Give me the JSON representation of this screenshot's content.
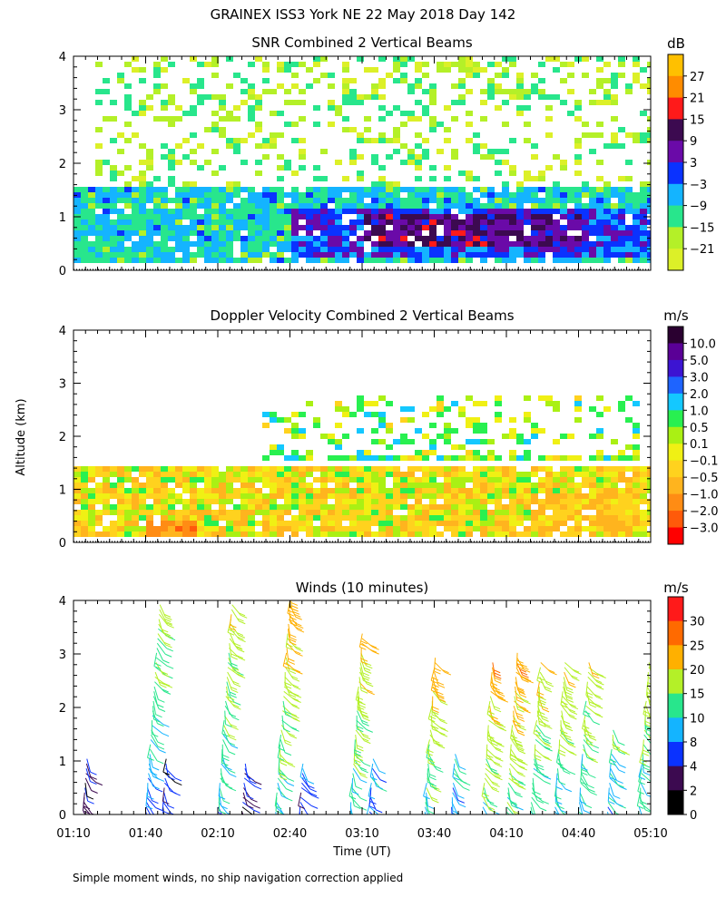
{
  "figure_title": "GRAINEX ISS3 York NE  22 May 2018 Day 142",
  "shared_ylabel": "Altitude (km)",
  "shared_xlabel": "Time (UT)",
  "footnote": "Simple moment winds, no ship navigation correction applied",
  "x_ticks": [
    "01:10",
    "01:40",
    "02:10",
    "02:40",
    "03:10",
    "03:40",
    "04:10",
    "04:40",
    "05:10"
  ],
  "y_ticks": [
    "0",
    "1",
    "2",
    "3",
    "4"
  ],
  "chart_data": [
    {
      "type": "heatmap",
      "title": "SNR Combined 2 Vertical Beams",
      "units": "dB",
      "xlim": [
        "01:10",
        "05:10"
      ],
      "ylim": [
        0,
        4
      ],
      "colorbar": {
        "labels": [
          "27",
          "21",
          "15",
          "9",
          "3",
          "−3",
          "−9",
          "−15",
          "−21"
        ],
        "colors": [
          "#ffc000",
          "#ff8c00",
          "#ff1a1a",
          "#3c0a50",
          "#6a0aa8",
          "#0a32ff",
          "#14b4ff",
          "#28e68c",
          "#b4f028",
          "#dcf028"
        ]
      },
      "regions": [
        {
          "x": [
            "01:10",
            "05:10"
          ],
          "y": [
            0.15,
            1.6
          ],
          "value_db": -12
        },
        {
          "x": [
            "02:40",
            "05:10"
          ],
          "y": [
            0.2,
            1.2
          ],
          "value_db": -3
        },
        {
          "x": [
            "03:10",
            "04:40"
          ],
          "y": [
            0.4,
            1.0
          ],
          "value_db": 6
        },
        {
          "x": [
            "01:20",
            "05:10"
          ],
          "y": [
            1.6,
            4.0
          ],
          "value_db": -20
        }
      ]
    },
    {
      "type": "heatmap",
      "title": "Doppler Velocity Combined 2 Vertical Beams",
      "units": "m/s",
      "xlim": [
        "01:10",
        "05:10"
      ],
      "ylim": [
        0,
        4
      ],
      "colorbar": {
        "labels": [
          "10.0",
          "5.0",
          "3.0",
          "2.0",
          "1.0",
          "0.5",
          "0.1",
          "−0.1",
          "−0.5",
          "−1.0",
          "−2.0",
          "−3.0"
        ],
        "colors": [
          "#2a0030",
          "#5a0096",
          "#3c14d2",
          "#1e64ff",
          "#14c8ff",
          "#28f050",
          "#aaf014",
          "#f0f014",
          "#ffd21e",
          "#ffb41e",
          "#ff8c14",
          "#ff5a0a",
          "#ff0000"
        ]
      },
      "regions": [
        {
          "x": [
            "01:10",
            "05:10"
          ],
          "y": [
            0.1,
            1.4
          ],
          "value_ms": -0.3
        },
        {
          "x": [
            "01:40",
            "02:00"
          ],
          "y": [
            0.1,
            0.4
          ],
          "value_ms": -2.0
        },
        {
          "x": [
            "04:20",
            "05:05"
          ],
          "y": [
            0.2,
            0.9
          ],
          "value_ms": -0.8
        },
        {
          "x": [
            "02:30",
            "05:05"
          ],
          "y": [
            1.5,
            2.8
          ],
          "value_ms": 0.3
        }
      ]
    },
    {
      "type": "scatter",
      "title": "Winds (10 minutes)",
      "units": "m/s",
      "xlim": [
        "01:10",
        "05:10"
      ],
      "ylim": [
        0,
        4
      ],
      "colorbar": {
        "labels": [
          "30",
          "25",
          "20",
          "15",
          "10",
          "8",
          "4",
          "2",
          "0"
        ],
        "colors": [
          "#ff1a1a",
          "#ff6a00",
          "#ffb000",
          "#b4f028",
          "#28e68c",
          "#14b4ff",
          "#0a32ff",
          "#3c0a50",
          "#000000"
        ]
      },
      "profiles": [
        {
          "time": "01:14",
          "top_km": 1.1,
          "speed_ms": 3
        },
        {
          "time": "01:40",
          "top_km": 4.0,
          "speed_ms": 10
        },
        {
          "time": "01:47",
          "top_km": 1.1,
          "speed_ms": 4
        },
        {
          "time": "02:10",
          "top_km": 4.0,
          "speed_ms": 12
        },
        {
          "time": "02:20",
          "top_km": 1.0,
          "speed_ms": 4
        },
        {
          "time": "02:34",
          "top_km": 4.1,
          "speed_ms": 14
        },
        {
          "time": "02:44",
          "top_km": 1.0,
          "speed_ms": 6
        },
        {
          "time": "03:05",
          "top_km": 3.4,
          "speed_ms": 14
        },
        {
          "time": "03:13",
          "top_km": 1.1,
          "speed_ms": 10
        },
        {
          "time": "03:36",
          "top_km": 3.0,
          "speed_ms": 16
        },
        {
          "time": "03:47",
          "top_km": 1.2,
          "speed_ms": 12
        },
        {
          "time": "04:00",
          "top_km": 2.9,
          "speed_ms": 18
        },
        {
          "time": "04:10",
          "top_km": 3.1,
          "speed_ms": 18
        },
        {
          "time": "04:20",
          "top_km": 2.9,
          "speed_ms": 15
        },
        {
          "time": "04:30",
          "top_km": 2.9,
          "speed_ms": 14
        },
        {
          "time": "04:40",
          "top_km": 2.9,
          "speed_ms": 14
        },
        {
          "time": "04:52",
          "top_km": 1.6,
          "speed_ms": 12
        },
        {
          "time": "05:05",
          "top_km": 2.9,
          "speed_ms": 14
        }
      ]
    }
  ]
}
